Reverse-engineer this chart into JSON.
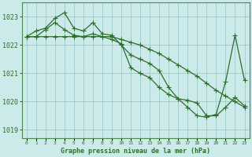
{
  "background_color": "#cceaea",
  "grid_color": "#88bbbb",
  "line_color": "#2d6e2d",
  "marker_color": "#2d6e2d",
  "title": "Graphe pression niveau de la mer (hPa)",
  "ylim": [
    1018.7,
    1023.5
  ],
  "yticks": [
    1019,
    1020,
    1021,
    1022,
    1023
  ],
  "xlim": [
    -0.5,
    23.5
  ],
  "xticks": [
    0,
    1,
    2,
    3,
    4,
    5,
    6,
    7,
    8,
    9,
    10,
    11,
    12,
    13,
    14,
    15,
    16,
    17,
    18,
    19,
    20,
    21,
    22,
    23
  ],
  "series1_y": [
    1022.3,
    1022.5,
    1022.6,
    1022.95,
    1023.15,
    1022.6,
    1022.5,
    1022.8,
    1022.4,
    1022.35,
    1022.0,
    1021.65,
    1021.5,
    1021.35,
    1021.1,
    1020.5,
    1020.1,
    1019.8,
    1019.5,
    1019.45,
    1019.55,
    1020.7,
    1022.35,
    1020.75
  ],
  "series2_y": [
    1022.3,
    1022.3,
    1022.3,
    1022.3,
    1022.3,
    1022.3,
    1022.3,
    1022.3,
    1022.3,
    1022.3,
    1022.2,
    1022.1,
    1022.0,
    1021.85,
    1021.7,
    1021.5,
    1021.3,
    1021.1,
    1020.9,
    1020.65,
    1020.4,
    1020.2,
    1020.0,
    1019.8
  ],
  "series3_y": [
    1022.3,
    1022.3,
    1022.55,
    1022.8,
    1022.55,
    1022.35,
    1022.3,
    1022.4,
    1022.3,
    1022.2,
    1022.05,
    1021.2,
    1021.0,
    1020.85,
    1020.5,
    1020.25,
    1020.1,
    1020.05,
    1019.95,
    1019.5,
    1019.5,
    1019.8,
    1020.15,
    1019.85
  ]
}
